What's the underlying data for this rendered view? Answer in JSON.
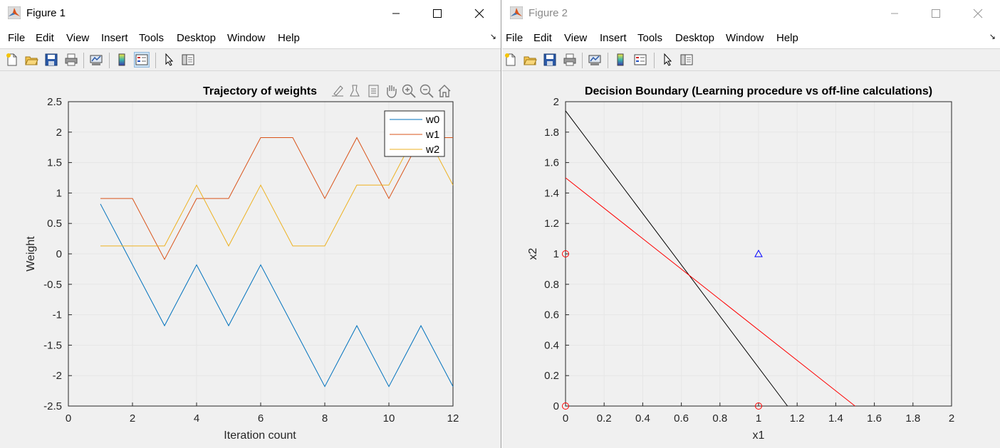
{
  "menu": [
    "File",
    "Edit",
    "View",
    "Insert",
    "Tools",
    "Desktop",
    "Window",
    "Help"
  ],
  "toolbar_icons": [
    "new-file-icon",
    "open-folder-icon",
    "save-icon",
    "print-icon",
    "link-plot-icon",
    "insert-colorbar-icon",
    "insert-legend-icon",
    "pointer-icon",
    "property-editor-icon"
  ],
  "figure1": {
    "window_title": "Figure 1",
    "axes_toolbar": [
      "brush-edit-icon",
      "data-tips-icon",
      "export-icon",
      "pan-icon",
      "zoom-in-icon",
      "zoom-out-icon",
      "home-icon"
    ],
    "chart_data": {
      "type": "line",
      "title": "Trajectory of weights",
      "xlabel": "Iteration count",
      "ylabel": "Weight",
      "xlim": [
        0,
        12
      ],
      "ylim": [
        -2.5,
        2.5
      ],
      "xticks": [
        "0",
        "2",
        "4",
        "6",
        "8",
        "10",
        "12"
      ],
      "yticks": [
        "-2.5",
        "-2",
        "-1.5",
        "-1",
        "-0.5",
        "0",
        "0.5",
        "1",
        "1.5",
        "2",
        "2.5"
      ],
      "grid": true,
      "legend_position": "top-right",
      "x": [
        1,
        2,
        3,
        4,
        5,
        6,
        7,
        8,
        9,
        10,
        11,
        12
      ],
      "series": [
        {
          "name": "w0",
          "color": "#0072bd",
          "values": [
            0.82,
            -0.18,
            -1.18,
            -0.18,
            -1.18,
            -0.18,
            -1.18,
            -2.18,
            -1.18,
            -2.18,
            -1.18,
            -2.18
          ]
        },
        {
          "name": "w1",
          "color": "#d95319",
          "values": [
            0.91,
            0.91,
            -0.09,
            0.91,
            0.91,
            1.91,
            1.91,
            0.91,
            1.91,
            0.91,
            1.91,
            1.91
          ]
        },
        {
          "name": "w2",
          "color": "#edb120",
          "values": [
            0.13,
            0.13,
            0.13,
            1.13,
            0.13,
            1.13,
            0.13,
            0.13,
            1.13,
            1.13,
            2.13,
            1.13
          ]
        }
      ]
    }
  },
  "figure2": {
    "window_title": "Figure 2",
    "chart_data": {
      "type": "scatter",
      "title": "Decision Boundary (Learning procedure vs off-line calculations)",
      "xlabel": "x1",
      "ylabel": "x2",
      "xlim": [
        0,
        2
      ],
      "ylim": [
        0,
        2
      ],
      "xticks": [
        "0",
        "0.2",
        "0.4",
        "0.6",
        "0.8",
        "1",
        "1.2",
        "1.4",
        "1.6",
        "1.8",
        "2"
      ],
      "yticks": [
        "0",
        "0.2",
        "0.4",
        "0.6",
        "0.8",
        "1",
        "1.2",
        "1.4",
        "1.6",
        "1.8",
        "2"
      ],
      "grid": true,
      "points": [
        {
          "x": 0,
          "y": 0,
          "marker": "circle",
          "color": "#ff0000"
        },
        {
          "x": 0,
          "y": 1,
          "marker": "circle",
          "color": "#ff0000"
        },
        {
          "x": 1,
          "y": 0,
          "marker": "circle",
          "color": "#ff0000"
        },
        {
          "x": 1,
          "y": 1,
          "marker": "triangle",
          "color": "#0000ff"
        }
      ],
      "lines": [
        {
          "color": "#000000",
          "x": [
            0,
            1.15
          ],
          "y": [
            1.94,
            0
          ]
        },
        {
          "color": "#ff0000",
          "x": [
            0,
            1.5
          ],
          "y": [
            1.5,
            0
          ]
        }
      ]
    }
  }
}
